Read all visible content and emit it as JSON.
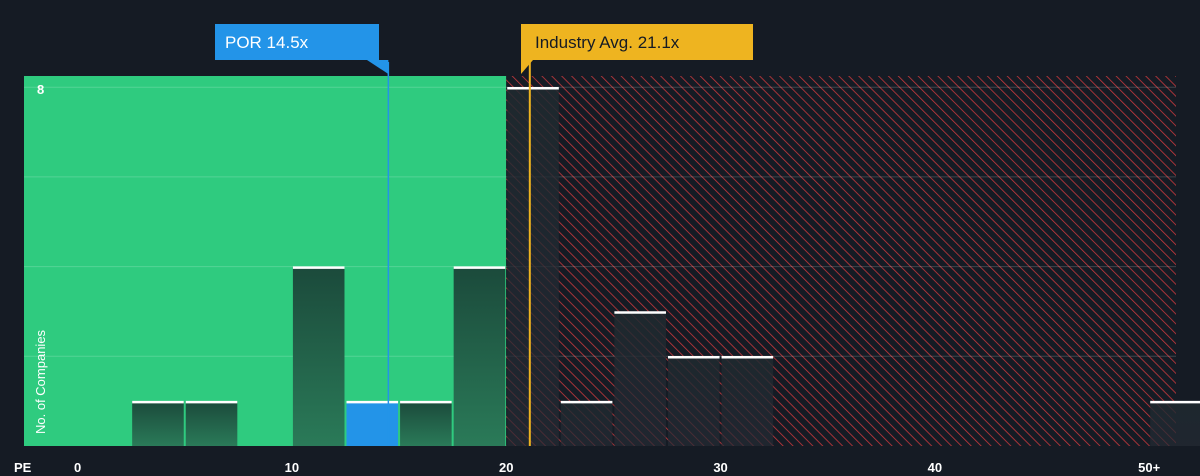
{
  "chart_data": {
    "type": "bar",
    "xlabel": "PE",
    "ylabel": "No. of Companies",
    "xlim": [
      -2.5,
      51.25
    ],
    "ylim": [
      0,
      8.25
    ],
    "x_ticks": [
      {
        "value": 0,
        "label": "0"
      },
      {
        "value": 10,
        "label": "10"
      },
      {
        "value": 20,
        "label": "20"
      },
      {
        "value": 30,
        "label": "30"
      },
      {
        "value": 40,
        "label": "40"
      },
      {
        "value": 50,
        "label": "50+"
      }
    ],
    "y_ticks": [
      {
        "value": 8,
        "label": "8"
      }
    ],
    "y_gridlines": [
      2,
      4,
      6,
      8
    ],
    "bin_width": 2.5,
    "bars": [
      {
        "x0": 2.5,
        "count": 1
      },
      {
        "x0": 5.0,
        "count": 1
      },
      {
        "x0": 10.0,
        "count": 4
      },
      {
        "x0": 12.5,
        "count": 1,
        "highlight": true
      },
      {
        "x0": 15.0,
        "count": 1
      },
      {
        "x0": 17.5,
        "count": 4
      },
      {
        "x0": 20.0,
        "count": 8
      },
      {
        "x0": 22.5,
        "count": 1
      },
      {
        "x0": 25.0,
        "count": 3
      },
      {
        "x0": 27.5,
        "count": 2
      },
      {
        "x0": 30.0,
        "count": 2
      },
      {
        "x0": 50.0,
        "count": 1
      }
    ],
    "fair_zone_end": 20.0,
    "company": {
      "label": "POR 14.5x",
      "value": 14.5,
      "color": "#2394e8"
    },
    "industry": {
      "label": "Industry Avg. 21.1x",
      "value": 21.1,
      "color": "#eeb420"
    },
    "colors": {
      "background": "#151b24",
      "fair_zone": "#2fcb7f",
      "bar_dark": "#1c4a3a",
      "bar_highlight": "#2394e8",
      "overvalued_stripe": "#c7383d",
      "bar_cap": "#ffffff"
    }
  }
}
